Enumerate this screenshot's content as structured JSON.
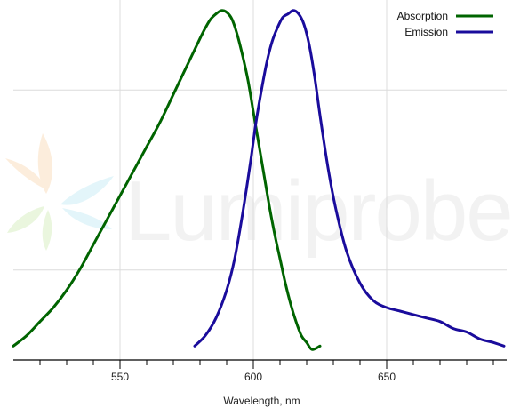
{
  "chart_data": {
    "type": "line",
    "title": "",
    "xlabel": "Wavelength, nm",
    "ylabel": "",
    "xlim": [
      510,
      695
    ],
    "ylim": [
      0,
      1.03
    ],
    "xticks": [
      550,
      600,
      650
    ],
    "grid": true,
    "legend_position": "top-right",
    "series": [
      {
        "name": "Absorption",
        "color": "#006400",
        "x": [
          510,
          515,
          520,
          525,
          530,
          535,
          540,
          545,
          550,
          555,
          560,
          565,
          570,
          575,
          580,
          582,
          584,
          586,
          588,
          590,
          592,
          594,
          596,
          598,
          600,
          602,
          604,
          606,
          608,
          610,
          612,
          614,
          616,
          618,
          620,
          622,
          625
        ],
        "y": [
          0.04,
          0.07,
          0.11,
          0.15,
          0.2,
          0.26,
          0.33,
          0.4,
          0.47,
          0.54,
          0.61,
          0.68,
          0.76,
          0.84,
          0.92,
          0.95,
          0.975,
          0.99,
          1.0,
          0.995,
          0.975,
          0.93,
          0.87,
          0.8,
          0.71,
          0.62,
          0.53,
          0.44,
          0.36,
          0.29,
          0.22,
          0.16,
          0.11,
          0.07,
          0.05,
          0.03,
          0.04
        ]
      },
      {
        "name": "Emission",
        "color": "#1a0c9c",
        "x": [
          578,
          582,
          586,
          590,
          593,
          596,
          599,
          601,
          603,
          605,
          607,
          609,
          611,
          613,
          615,
          617,
          619,
          621,
          623,
          625,
          628,
          631,
          635,
          640,
          645,
          650,
          655,
          660,
          665,
          670,
          675,
          680,
          685,
          690,
          694
        ],
        "y": [
          0.04,
          0.07,
          0.12,
          0.2,
          0.29,
          0.42,
          0.57,
          0.68,
          0.77,
          0.85,
          0.91,
          0.95,
          0.98,
          0.99,
          1.0,
          0.99,
          0.96,
          0.9,
          0.81,
          0.7,
          0.55,
          0.43,
          0.31,
          0.22,
          0.17,
          0.15,
          0.14,
          0.13,
          0.12,
          0.11,
          0.09,
          0.08,
          0.06,
          0.05,
          0.04
        ]
      }
    ],
    "watermark": "Lumiprobe"
  }
}
